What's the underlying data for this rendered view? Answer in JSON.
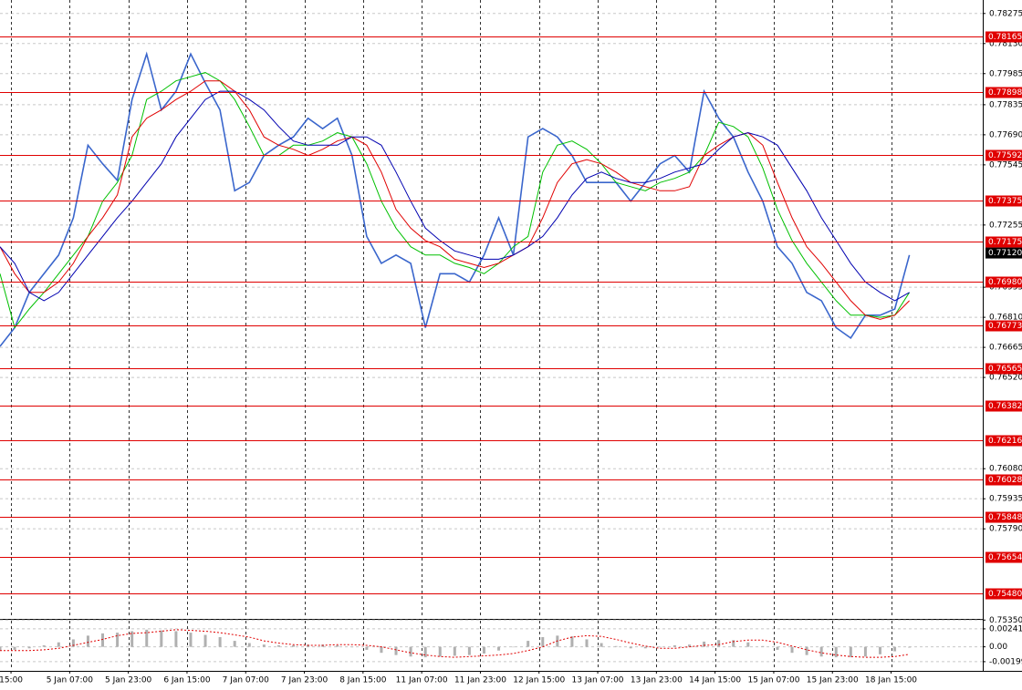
{
  "chart_data": [
    {
      "type": "line",
      "x": [
        0,
        4,
        8,
        12,
        16,
        20,
        24,
        28,
        32,
        36,
        40,
        44,
        48,
        52,
        56,
        60,
        64,
        68,
        72,
        76,
        80,
        84,
        88,
        92,
        96,
        100,
        104,
        108,
        112,
        116,
        120,
        124,
        128,
        132,
        136,
        140,
        144,
        148,
        152,
        156,
        160,
        164,
        168,
        172,
        176,
        180,
        184,
        188,
        192,
        196,
        200,
        204,
        208,
        212,
        216,
        220,
        224,
        228,
        232,
        236,
        240,
        244,
        248
      ],
      "xlim": [
        0,
        268
      ],
      "xticks": [
        {
          "value": 3,
          "label": "15:00"
        },
        {
          "value": 19,
          "label": "5 Jan 07:00"
        },
        {
          "value": 35,
          "label": "5 Jan 23:00"
        },
        {
          "value": 51,
          "label": "6 Jan 15:00"
        },
        {
          "value": 67,
          "label": "7 Jan 07:00"
        },
        {
          "value": 83,
          "label": "7 Jan 23:00"
        },
        {
          "value": 99,
          "label": "8 Jan 15:00"
        },
        {
          "value": 115,
          "label": "11 Jan 07:00"
        },
        {
          "value": 131,
          "label": "11 Jan 23:00"
        },
        {
          "value": 147,
          "label": "12 Jan 15:00"
        },
        {
          "value": 163,
          "label": "13 Jan 07:00"
        },
        {
          "value": 179,
          "label": "13 Jan 23:00"
        },
        {
          "value": 195,
          "label": "14 Jan 15:00"
        },
        {
          "value": 211,
          "label": "15 Jan 07:00"
        },
        {
          "value": 227,
          "label": "15 Jan 23:00"
        },
        {
          "value": 243,
          "label": "18 Jan 15:00"
        }
      ],
      "ylim": [
        0.7536,
        0.7834
      ],
      "yticks": [
        {
          "value": 0.78275,
          "label": "0.78275"
        },
        {
          "value": 0.7813,
          "label": "0.78130"
        },
        {
          "value": 0.77985,
          "label": "0.77985"
        },
        {
          "value": 0.77835,
          "label": "0.77835"
        },
        {
          "value": 0.7769,
          "label": "0.77690"
        },
        {
          "value": 0.77545,
          "label": "0.77545"
        },
        {
          "value": 0.77255,
          "label": "0.77255"
        },
        {
          "value": 0.76955,
          "label": "0.76955"
        },
        {
          "value": 0.7681,
          "label": "0.76810"
        },
        {
          "value": 0.76665,
          "label": "0.76665"
        },
        {
          "value": 0.7652,
          "label": "0.76520"
        },
        {
          "value": 0.7608,
          "label": "0.76080"
        },
        {
          "value": 0.75935,
          "label": "0.75935"
        },
        {
          "value": 0.7579,
          "label": "0.75790"
        },
        {
          "value": 0.7535,
          "label": "0.75350"
        }
      ],
      "grid": true,
      "levels": [
        {
          "value": 0.78165,
          "label": "0.78165"
        },
        {
          "value": 0.77898,
          "label": "0.77898"
        },
        {
          "value": 0.77592,
          "label": "0.77592"
        },
        {
          "value": 0.77375,
          "label": "0.77375"
        },
        {
          "value": 0.77175,
          "label": "0.77175"
        },
        {
          "value": 0.7698,
          "label": "0.76980"
        },
        {
          "value": 0.76773,
          "label": "0.76773"
        },
        {
          "value": 0.76565,
          "label": "0.76565"
        },
        {
          "value": 0.76382,
          "label": "0.76382"
        },
        {
          "value": 0.76216,
          "label": "0.76216"
        },
        {
          "value": 0.76028,
          "label": "0.76028"
        },
        {
          "value": 0.75848,
          "label": "0.75848"
        },
        {
          "value": 0.75654,
          "label": "0.75654"
        },
        {
          "value": 0.7548,
          "label": "0.75480"
        }
      ],
      "level_color": "#e00000",
      "current_price": {
        "value": 0.7712,
        "label": "0.77120"
      },
      "series": [
        {
          "color": "#3a66cc",
          "values": [
            0.7667,
            0.7676,
            0.7693,
            0.7702,
            0.7711,
            0.7729,
            0.7764,
            0.7755,
            0.7747,
            0.7786,
            0.7808,
            0.7781,
            0.779,
            0.7808,
            0.7794,
            0.7781,
            0.7742,
            0.7746,
            0.7759,
            0.7764,
            0.7768,
            0.7777,
            0.7772,
            0.7777,
            0.7759,
            0.772,
            0.7707,
            0.7711,
            0.7707,
            0.7676,
            0.7702,
            0.7702,
            0.7698,
            0.7711,
            0.7729,
            0.7711,
            0.7768,
            0.7772,
            0.7768,
            0.7759,
            0.7746,
            0.7746,
            0.7746,
            0.7737,
            0.7746,
            0.7755,
            0.7759,
            0.7751,
            0.779,
            0.7777,
            0.7768,
            0.7751,
            0.7737,
            0.7715,
            0.7707,
            0.7693,
            0.7689,
            0.7676,
            0.7671,
            0.7682,
            0.7682,
            0.7685,
            0.7711
          ]
        },
        {
          "color": "#00c000",
          "values": [
            0.7702,
            0.7676,
            0.7685,
            0.7693,
            0.7702,
            0.7711,
            0.772,
            0.7737,
            0.7746,
            0.7759,
            0.7786,
            0.779,
            0.7795,
            0.7797,
            0.7799,
            0.7795,
            0.7786,
            0.7773,
            0.7759,
            0.7759,
            0.7764,
            0.7764,
            0.7766,
            0.777,
            0.7768,
            0.7755,
            0.7737,
            0.7724,
            0.7715,
            0.7711,
            0.7711,
            0.7707,
            0.7705,
            0.7702,
            0.7707,
            0.7715,
            0.772,
            0.7751,
            0.7764,
            0.7766,
            0.7762,
            0.7755,
            0.7746,
            0.7744,
            0.7742,
            0.7746,
            0.7748,
            0.7751,
            0.7759,
            0.7775,
            0.7773,
            0.7768,
            0.7753,
            0.7733,
            0.7718,
            0.7707,
            0.7698,
            0.7689,
            0.7682,
            0.7682,
            0.7681,
            0.7682,
            0.7693
          ]
        },
        {
          "color": "#e00000",
          "values": [
            0.7715,
            0.7702,
            0.7693,
            0.7693,
            0.7698,
            0.7707,
            0.772,
            0.7729,
            0.774,
            0.7768,
            0.7777,
            0.7781,
            0.7786,
            0.779,
            0.7795,
            0.7795,
            0.779,
            0.7781,
            0.7768,
            0.7764,
            0.7762,
            0.7759,
            0.7762,
            0.7766,
            0.7768,
            0.7764,
            0.7751,
            0.7733,
            0.7724,
            0.7718,
            0.7715,
            0.7709,
            0.7707,
            0.7705,
            0.7707,
            0.7711,
            0.7715,
            0.7729,
            0.7746,
            0.7755,
            0.7757,
            0.7755,
            0.7751,
            0.7746,
            0.7744,
            0.7742,
            0.7742,
            0.7744,
            0.7759,
            0.7764,
            0.7768,
            0.777,
            0.7764,
            0.7746,
            0.7729,
            0.7715,
            0.7707,
            0.7698,
            0.7689,
            0.7682,
            0.768,
            0.7682,
            0.7689
          ]
        },
        {
          "color": "#0000b0",
          "values": [
            0.7715,
            0.7707,
            0.7693,
            0.7689,
            0.7693,
            0.7702,
            0.7711,
            0.772,
            0.7729,
            0.7737,
            0.7746,
            0.7755,
            0.7768,
            0.7777,
            0.7786,
            0.779,
            0.779,
            0.7786,
            0.7781,
            0.7773,
            0.7766,
            0.7764,
            0.7764,
            0.7764,
            0.7768,
            0.7768,
            0.7764,
            0.7751,
            0.7737,
            0.7724,
            0.7718,
            0.7713,
            0.7711,
            0.7709,
            0.7709,
            0.7711,
            0.7715,
            0.772,
            0.7729,
            0.774,
            0.7748,
            0.7751,
            0.7748,
            0.7746,
            0.7746,
            0.7748,
            0.7751,
            0.7753,
            0.7755,
            0.7762,
            0.7768,
            0.777,
            0.7768,
            0.7764,
            0.7753,
            0.7742,
            0.7729,
            0.7718,
            0.7707,
            0.7698,
            0.7693,
            0.7689,
            0.7693
          ]
        }
      ]
    },
    {
      "type": "bar",
      "x": [
        0,
        4,
        8,
        12,
        16,
        20,
        24,
        28,
        32,
        36,
        40,
        44,
        48,
        52,
        56,
        60,
        64,
        68,
        72,
        76,
        80,
        84,
        88,
        92,
        96,
        100,
        104,
        108,
        112,
        116,
        120,
        124,
        128,
        132,
        136,
        140,
        144,
        148,
        152,
        156,
        160,
        164,
        168,
        172,
        176,
        180,
        184,
        188,
        192,
        196,
        200,
        204,
        208,
        212,
        216,
        220,
        224,
        228,
        232,
        236,
        240,
        244,
        248
      ],
      "xlim": [
        0,
        268
      ],
      "ylim": [
        -0.0031,
        0.0035
      ],
      "yticks": [
        {
          "value": 0.00241,
          "label": "0.00241"
        },
        {
          "value": 0,
          "label": "0.00"
        },
        {
          "value": -0.00199,
          "label": "-0.00199"
        }
      ],
      "color": "#b0b0b0",
      "values": [
        -0.0005,
        -0.0004,
        -0.0002,
        0.0002,
        0.0006,
        0.001,
        0.0015,
        0.0018,
        0.0019,
        0.0021,
        0.0023,
        0.0022,
        0.0021,
        0.0019,
        0.0016,
        0.0013,
        0.0008,
        0.0005,
        0.0003,
        0.0002,
        0.0002,
        0.0003,
        0.0003,
        0.0002,
        0,
        -0.0004,
        -0.0008,
        -0.0011,
        -0.0013,
        -0.0014,
        -0.0013,
        -0.0012,
        -0.0011,
        -0.0009,
        -0.0005,
        0,
        0.0008,
        0.0013,
        0.0015,
        0.0014,
        0.001,
        0.0005,
        0.0001,
        -0.0002,
        -0.0002,
        0,
        0.0002,
        0.0003,
        0.0007,
        0.0009,
        0.0009,
        0.0006,
        0.0001,
        -0.0004,
        -0.0008,
        -0.0011,
        -0.0013,
        -0.0014,
        -0.0014,
        -0.0013,
        -0.001,
        -0.0006,
        -0.0001
      ],
      "signal": {
        "color": "#e00000",
        "values": [
          -0.0005,
          -0.0005,
          -0.0005,
          -0.0004,
          -0.0002,
          0.0002,
          0.0006,
          0.001,
          0.0015,
          0.0018,
          0.0019,
          0.0021,
          0.0023,
          0.0022,
          0.0021,
          0.0019,
          0.0016,
          0.0013,
          0.0008,
          0.0005,
          0.0003,
          0.0002,
          0.0002,
          0.0003,
          0.0003,
          0.0002,
          0,
          -0.0004,
          -0.0008,
          -0.0011,
          -0.0013,
          -0.0014,
          -0.0013,
          -0.0012,
          -0.0011,
          -0.0009,
          -0.0005,
          0,
          0.0008,
          0.0013,
          0.0015,
          0.0014,
          0.001,
          0.0005,
          0.0001,
          -0.0002,
          -0.0002,
          0,
          0.0002,
          0.0003,
          0.0007,
          0.0009,
          0.0009,
          0.0006,
          0.0001,
          -0.0004,
          -0.0008,
          -0.0011,
          -0.0013,
          -0.0014,
          -0.0014,
          -0.0013,
          -0.001
        ]
      }
    }
  ]
}
